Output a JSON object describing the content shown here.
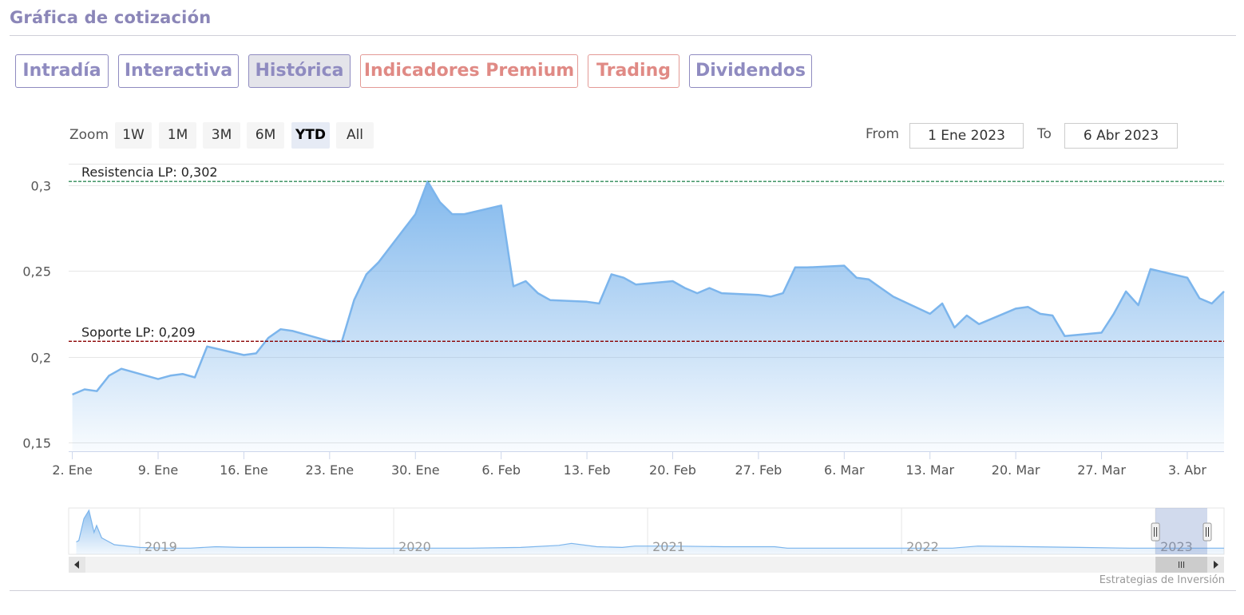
{
  "header": {
    "title": "Gráfica de cotización"
  },
  "tabs": [
    {
      "label": "Intradía",
      "style": "normal"
    },
    {
      "label": "Interactiva",
      "style": "normal"
    },
    {
      "label": "Histórica",
      "style": "active"
    },
    {
      "label": "Indicadores Premium",
      "style": "premium"
    },
    {
      "label": "Trading",
      "style": "premium"
    },
    {
      "label": "Dividendos",
      "style": "normal"
    }
  ],
  "zoom": {
    "label": "Zoom",
    "options": [
      "1W",
      "1M",
      "3M",
      "6M",
      "YTD",
      "All"
    ],
    "selected": "YTD"
  },
  "range": {
    "from_label": "From",
    "from_value": "1 Ene 2023",
    "to_label": "To",
    "to_value": "6 Abr 2023"
  },
  "credit": "Estrategias de Inversión",
  "colors": {
    "line": "#7cb5ec",
    "resistance": "#2e8b57",
    "support": "#8b0000",
    "tab_normal": "#8f8bc0",
    "tab_premium": "#e08a85"
  },
  "chart_data": {
    "type": "area",
    "title": "",
    "xlabel": "",
    "ylabel": "",
    "ylim": [
      0.145,
      0.31
    ],
    "y_ticks": [
      {
        "value": 0.15,
        "label": "0,15"
      },
      {
        "value": 0.2,
        "label": "0,2"
      },
      {
        "value": 0.25,
        "label": "0,25"
      },
      {
        "value": 0.3,
        "label": "0,3"
      }
    ],
    "x_ticks": [
      {
        "date": "2023-01-02",
        "label": "2. Ene"
      },
      {
        "date": "2023-01-09",
        "label": "9. Ene"
      },
      {
        "date": "2023-01-16",
        "label": "16. Ene"
      },
      {
        "date": "2023-01-23",
        "label": "23. Ene"
      },
      {
        "date": "2023-01-30",
        "label": "30. Ene"
      },
      {
        "date": "2023-02-06",
        "label": "6. Feb"
      },
      {
        "date": "2023-02-13",
        "label": "13. Feb"
      },
      {
        "date": "2023-02-20",
        "label": "20. Feb"
      },
      {
        "date": "2023-02-27",
        "label": "27. Feb"
      },
      {
        "date": "2023-03-06",
        "label": "6. Mar"
      },
      {
        "date": "2023-03-13",
        "label": "13. Mar"
      },
      {
        "date": "2023-03-20",
        "label": "20. Mar"
      },
      {
        "date": "2023-03-27",
        "label": "27. Mar"
      },
      {
        "date": "2023-04-03",
        "label": "3. Abr"
      }
    ],
    "x_range": [
      "2023-01-02",
      "2023-04-06"
    ],
    "grid": true,
    "legend": "none",
    "series": [
      {
        "x": [
          "2023-01-02",
          "2023-01-03",
          "2023-01-04",
          "2023-01-05",
          "2023-01-06",
          "2023-01-09",
          "2023-01-10",
          "2023-01-11",
          "2023-01-12",
          "2023-01-13",
          "2023-01-16",
          "2023-01-17",
          "2023-01-18",
          "2023-01-19",
          "2023-01-20",
          "2023-01-23",
          "2023-01-24",
          "2023-01-25",
          "2023-01-26",
          "2023-01-27",
          "2023-01-30",
          "2023-01-31",
          "2023-02-01",
          "2023-02-02",
          "2023-02-03",
          "2023-02-06",
          "2023-02-07",
          "2023-02-08",
          "2023-02-09",
          "2023-02-10",
          "2023-02-13",
          "2023-02-14",
          "2023-02-15",
          "2023-02-16",
          "2023-02-17",
          "2023-02-20",
          "2023-02-21",
          "2023-02-22",
          "2023-02-23",
          "2023-02-24",
          "2023-02-27",
          "2023-02-28",
          "2023-03-01",
          "2023-03-02",
          "2023-03-03",
          "2023-03-06",
          "2023-03-07",
          "2023-03-08",
          "2023-03-09",
          "2023-03-10",
          "2023-03-13",
          "2023-03-14",
          "2023-03-15",
          "2023-03-16",
          "2023-03-17",
          "2023-03-20",
          "2023-03-21",
          "2023-03-22",
          "2023-03-23",
          "2023-03-24",
          "2023-03-27",
          "2023-03-28",
          "2023-03-29",
          "2023-03-30",
          "2023-03-31",
          "2023-04-03",
          "2023-04-04",
          "2023-04-05",
          "2023-04-06"
        ],
        "values": [
          0.178,
          0.181,
          0.18,
          0.189,
          0.193,
          0.187,
          0.189,
          0.19,
          0.188,
          0.206,
          0.201,
          0.202,
          0.211,
          0.216,
          0.215,
          0.209,
          0.209,
          0.233,
          0.248,
          0.255,
          0.283,
          0.302,
          0.29,
          0.283,
          0.283,
          0.288,
          0.241,
          0.244,
          0.237,
          0.233,
          0.232,
          0.231,
          0.248,
          0.246,
          0.242,
          0.244,
          0.24,
          0.237,
          0.24,
          0.237,
          0.236,
          0.235,
          0.237,
          0.252,
          0.252,
          0.253,
          0.246,
          0.245,
          0.24,
          0.235,
          0.225,
          0.231,
          0.217,
          0.224,
          0.219,
          0.228,
          0.229,
          0.225,
          0.224,
          0.212,
          0.214,
          0.225,
          0.238,
          0.23,
          0.251,
          0.246,
          0.234,
          0.231,
          0.238
        ]
      }
    ],
    "plot_lines": [
      {
        "label": "Resistencia LP: 0,302",
        "value": 0.302,
        "style": "dashed",
        "color": "#2e8b57"
      },
      {
        "label": "Soporte LP: 0,209",
        "value": 0.209,
        "style": "dashed",
        "color": "#8b0000"
      }
    ],
    "navigator": {
      "year_labels": [
        {
          "year": "2019",
          "value": 2019
        },
        {
          "year": "2020",
          "value": 2020
        },
        {
          "year": "2021",
          "value": 2021
        },
        {
          "year": "2022",
          "value": 2022
        },
        {
          "year": "2023",
          "value": 2023
        }
      ],
      "series_x": [
        2018.75,
        2018.76,
        2018.78,
        2018.8,
        2018.82,
        2018.83,
        2018.85,
        2018.9,
        2019.0,
        2019.1,
        2019.2,
        2019.3,
        2019.4,
        2019.5,
        2019.7,
        2019.9,
        2020.1,
        2020.3,
        2020.5,
        2020.65,
        2020.7,
        2020.8,
        2020.9,
        2020.95,
        2021.1,
        2021.3,
        2021.5,
        2021.55,
        2021.6,
        2021.8,
        2022.0,
        2022.2,
        2022.3,
        2022.5,
        2022.7,
        2022.9,
        2023.1,
        2023.27
      ],
      "series_values": [
        0.9,
        1.0,
        2.6,
        3.2,
        1.6,
        2.1,
        1.2,
        0.7,
        0.5,
        0.45,
        0.45,
        0.55,
        0.5,
        0.5,
        0.5,
        0.45,
        0.45,
        0.45,
        0.5,
        0.65,
        0.8,
        0.55,
        0.5,
        0.6,
        0.6,
        0.55,
        0.55,
        0.45,
        0.45,
        0.45,
        0.45,
        0.45,
        0.6,
        0.55,
        0.5,
        0.45,
        0.45,
        0.45
      ],
      "selection": [
        "2023-01-01",
        "2023-04-06"
      ]
    }
  }
}
